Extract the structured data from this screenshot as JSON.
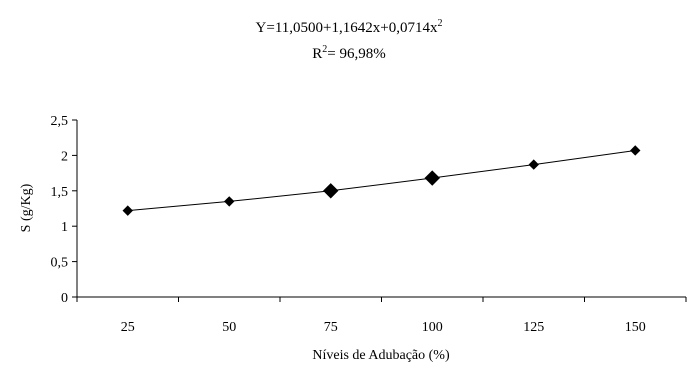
{
  "annotations": {
    "equation_prefix": "Y=11,0500+1,1642x+0,0714x",
    "equation_exponent": "2",
    "r2_prefix": "R",
    "r2_exponent": "2",
    "r2_suffix": "= 96,98%"
  },
  "chart_data": {
    "type": "line",
    "xlabel": "Níveis de Adubação (%)",
    "ylabel": "S (g/Kg)",
    "categories": [
      "25",
      "50",
      "75",
      "100",
      "125",
      "150"
    ],
    "values": [
      1.22,
      1.35,
      1.5,
      1.68,
      1.87,
      2.07
    ],
    "ylim": [
      0,
      2.5
    ],
    "yticks": [
      "0",
      "0,5",
      "1",
      "1,5",
      "2",
      "2,5"
    ],
    "ytick_values": [
      0,
      0.5,
      1,
      1.5,
      2,
      2.5
    ],
    "large_markers": [
      2,
      3
    ],
    "grid": false,
    "legend": "none",
    "line_color": "#000000",
    "marker_shape": "diamond"
  }
}
